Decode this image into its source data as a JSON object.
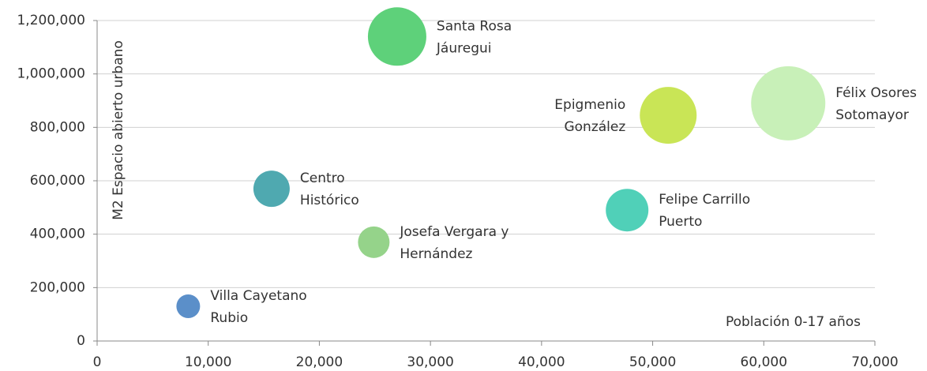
{
  "chart_data": {
    "type": "bubble",
    "x_label": "Población 0-17 años",
    "y_label": "M2 Espacio abierto urbano",
    "labels": [
      [
        "Villa Cayetano",
        "Rubio"
      ],
      [
        "Centro",
        "Histórico"
      ],
      [
        "Josefa Vergara y",
        "Hernández"
      ],
      [
        "Santa Rosa",
        "Jáuregui"
      ],
      [
        "Felipe Carrillo",
        "Puerto"
      ],
      [
        "Epigmenio",
        "González"
      ],
      [
        "Félix Osores",
        "Sotomayor"
      ]
    ],
    "x": [
      8200,
      15700,
      24900,
      27000,
      47700,
      51400,
      62200
    ],
    "values": [
      130000,
      570000,
      370000,
      1140000,
      490000,
      845000,
      890000
    ],
    "sizes": [
      225,
      529,
      400,
      1369,
      729,
      1296,
      2209
    ],
    "colors": [
      "#5b8fc9",
      "#4fa9b0",
      "#95d38a",
      "#5ed17a",
      "#50d0b8",
      "#c9e556",
      "#c8f0b8"
    ],
    "xlim": [
      0,
      70000
    ],
    "xticks": [
      0,
      {
        "value": 10000,
        "label": "10,000"
      },
      {
        "value": 20000,
        "label": "20,000"
      },
      {
        "value": 30000,
        "label": "30,000"
      },
      {
        "value": 40000,
        "label": "40,000"
      },
      {
        "value": 50000,
        "label": "50,000"
      },
      {
        "value": 60000,
        "label": "60,000"
      },
      {
        "value": 70000,
        "label": "70,000"
      }
    ],
    "ylim": [
      0,
      1200000
    ],
    "yticks": [
      0,
      {
        "value": 200000,
        "label": "200,000"
      },
      {
        "value": 400000,
        "label": "400,000"
      },
      {
        "value": 600000,
        "label": "600,000"
      },
      {
        "value": 800000,
        "label": "800,000"
      },
      {
        "value": 1000000,
        "label": "1,000,000"
      },
      {
        "value": 1200000,
        "label": "1,200,000"
      }
    ],
    "grid": true
  }
}
